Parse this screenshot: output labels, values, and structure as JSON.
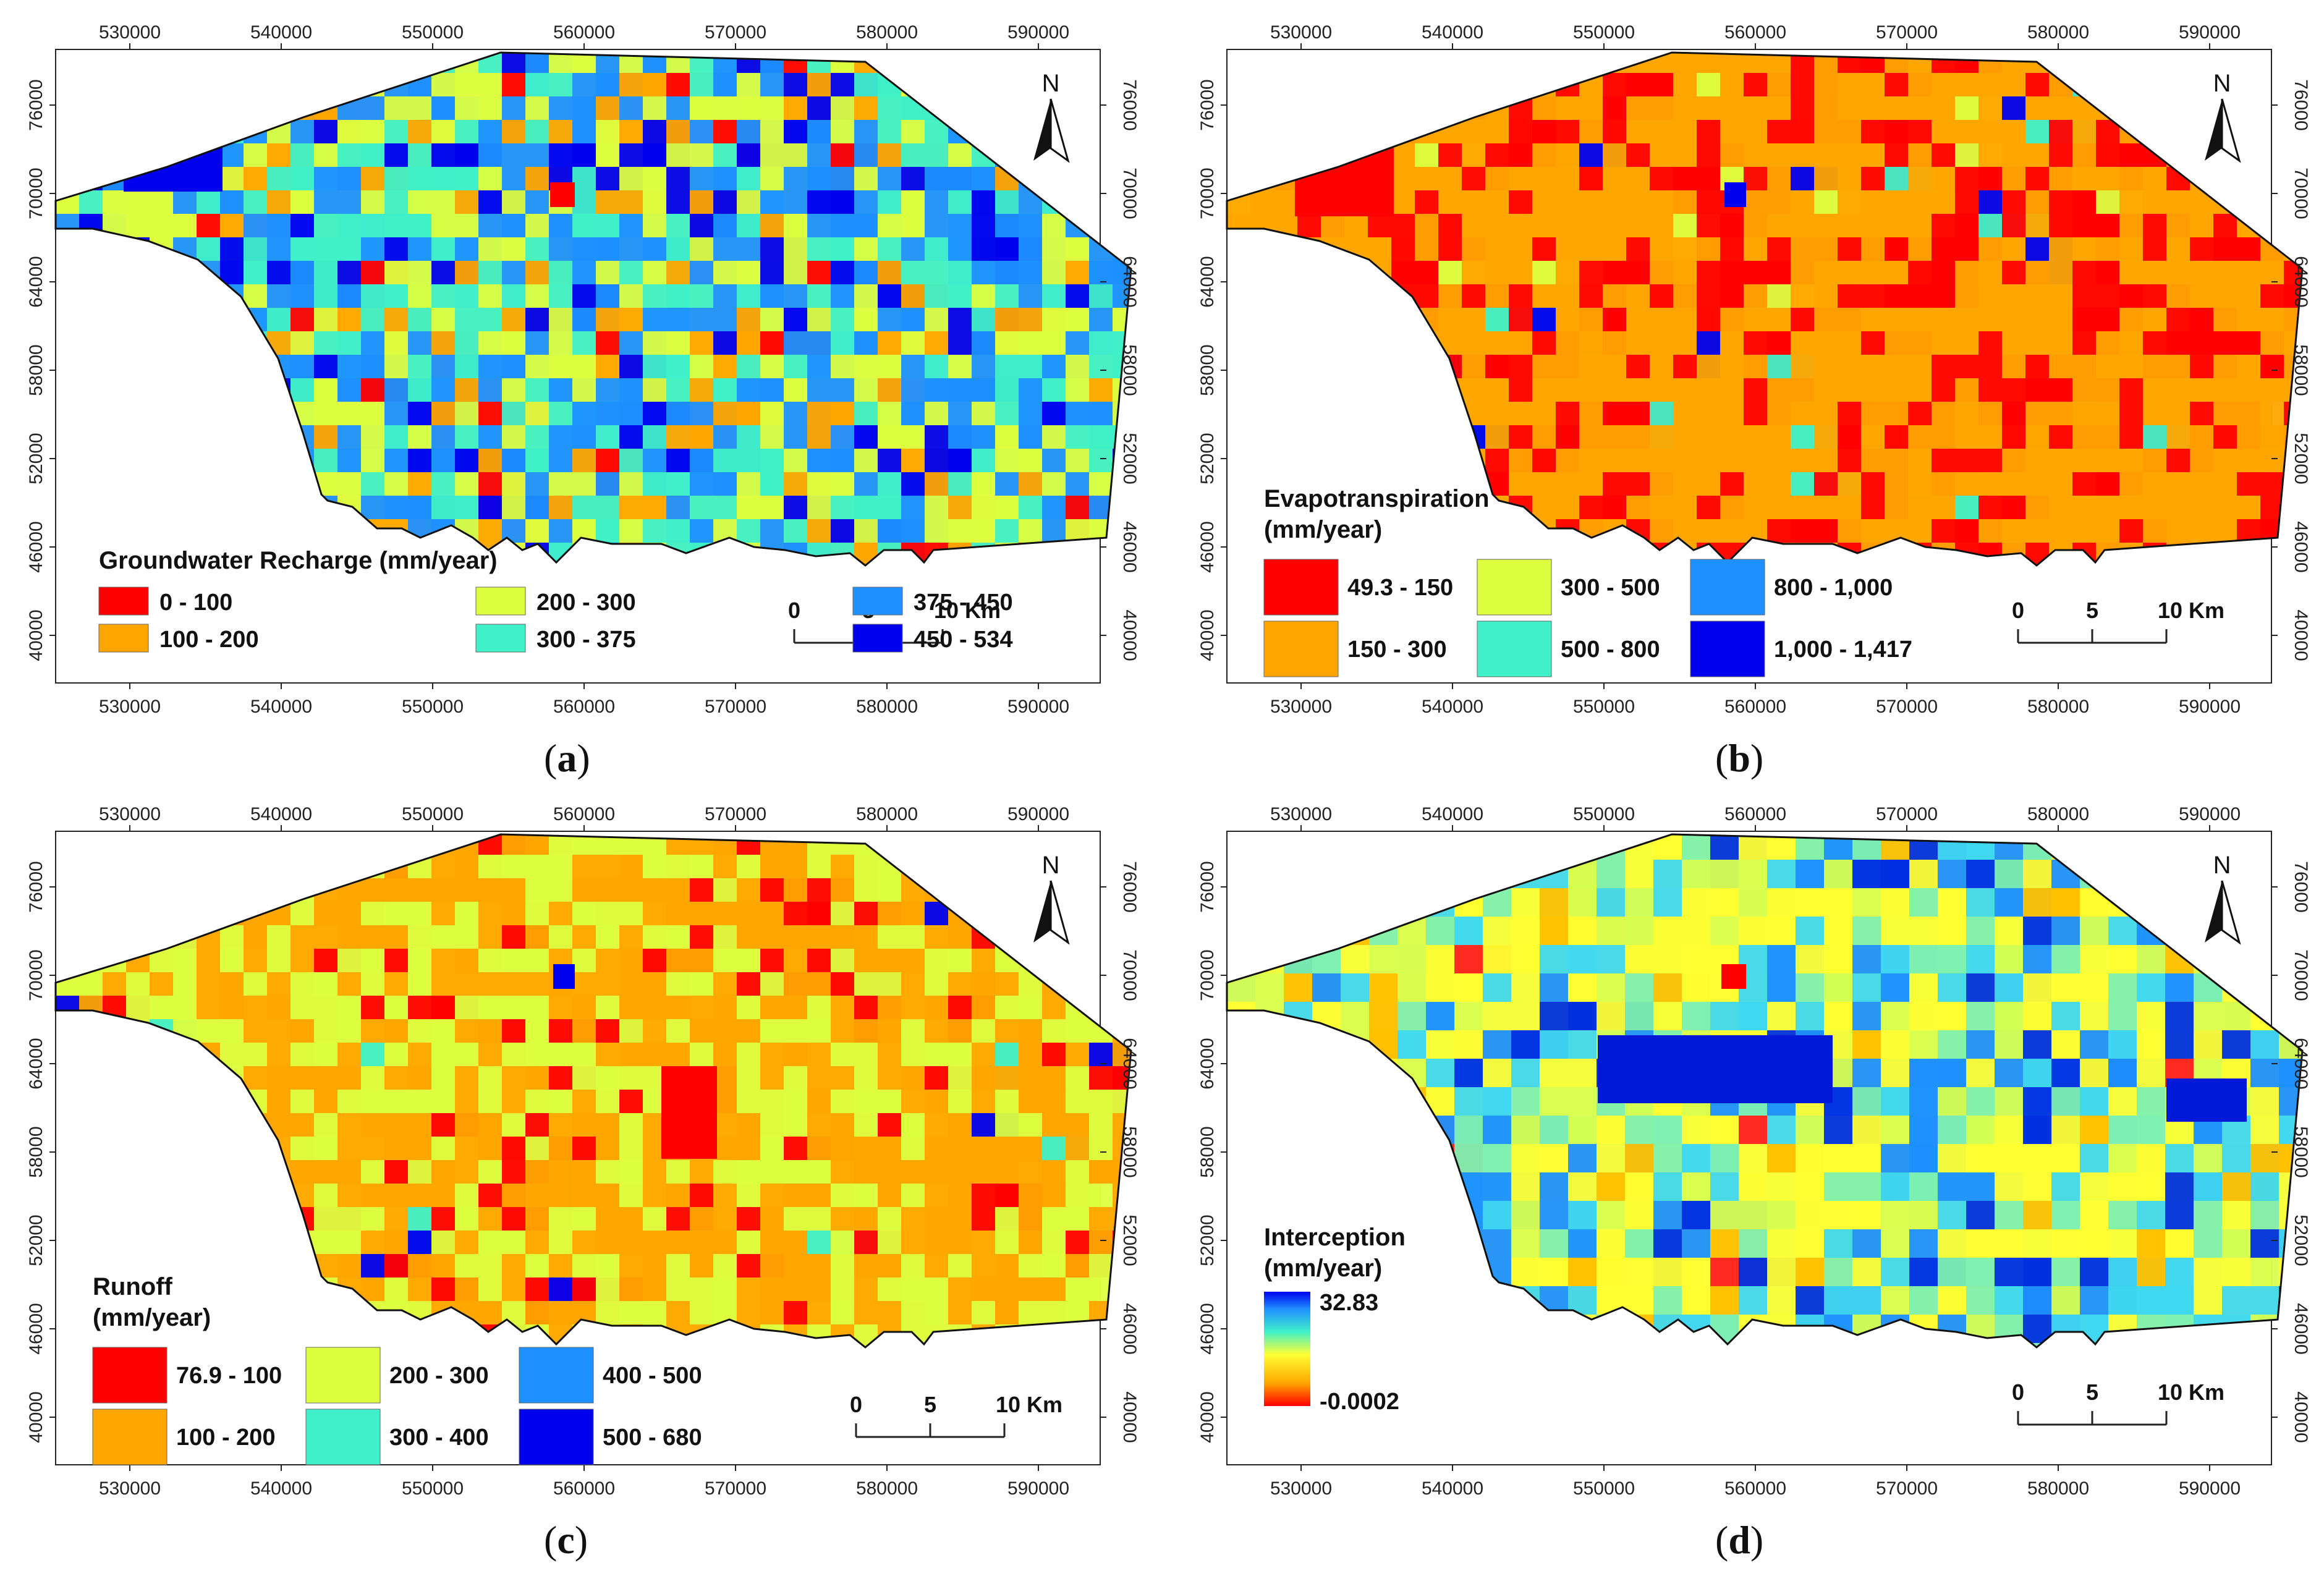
{
  "axes": {
    "x_ticks": [
      "530000",
      "540000",
      "550000",
      "560000",
      "570000",
      "580000",
      "590000"
    ],
    "y_ticks": [
      "76000",
      "70000",
      "64000",
      "58000",
      "52000",
      "46000",
      "40000"
    ]
  },
  "north_label": "N",
  "scale": {
    "labels": [
      "0",
      "5",
      "10 Km"
    ]
  },
  "colors": {
    "red": "#ff0000",
    "orange": "#ffa500",
    "yellow": "#ddff40",
    "cyan": "#40f0c8",
    "lightblue": "#1e90ff",
    "blue": "#0000ee"
  },
  "panels": [
    {
      "caption_letter": "a",
      "legend_title": "Groundwater Recharge (mm/year)",
      "legend_title_line2": "",
      "legend_items": [
        {
          "label": "0 - 100",
          "color": "#ff0000"
        },
        {
          "label": "100 - 200",
          "color": "#ffa500"
        },
        {
          "label": "200 - 300",
          "color": "#ddff40"
        },
        {
          "label": "300 - 375",
          "color": "#40f0c8"
        },
        {
          "label": "375 - 450",
          "color": "#1e90ff"
        },
        {
          "label": "450 - 534",
          "color": "#0000ee"
        }
      ]
    },
    {
      "caption_letter": "b",
      "legend_title": "Evapotranspiration",
      "legend_title_line2": "(mm/year)",
      "legend_items": [
        {
          "label": "49.3 - 150",
          "color": "#ff0000"
        },
        {
          "label": "150 - 300",
          "color": "#ffa500"
        },
        {
          "label": "300 - 500",
          "color": "#ddff40"
        },
        {
          "label": "500 - 800",
          "color": "#40f0c8"
        },
        {
          "label": "800 - 1,000",
          "color": "#1e90ff"
        },
        {
          "label": "1,000 - 1,417",
          "color": "#0000ee"
        }
      ]
    },
    {
      "caption_letter": "c",
      "legend_title": "Runoff",
      "legend_title_line2": "(mm/year)",
      "legend_items": [
        {
          "label": "76.9 - 100",
          "color": "#ff0000"
        },
        {
          "label": "100 - 200",
          "color": "#ffa500"
        },
        {
          "label": "200 - 300",
          "color": "#ddff40"
        },
        {
          "label": "300 - 400",
          "color": "#40f0c8"
        },
        {
          "label": "400 - 500",
          "color": "#1e90ff"
        },
        {
          "label": "500 - 680",
          "color": "#0000ee"
        }
      ]
    },
    {
      "caption_letter": "d",
      "legend_title": "Interception",
      "legend_title_line2": "(mm/year)",
      "gradient_max": "32.83",
      "gradient_min": "-0.0002"
    }
  ]
}
